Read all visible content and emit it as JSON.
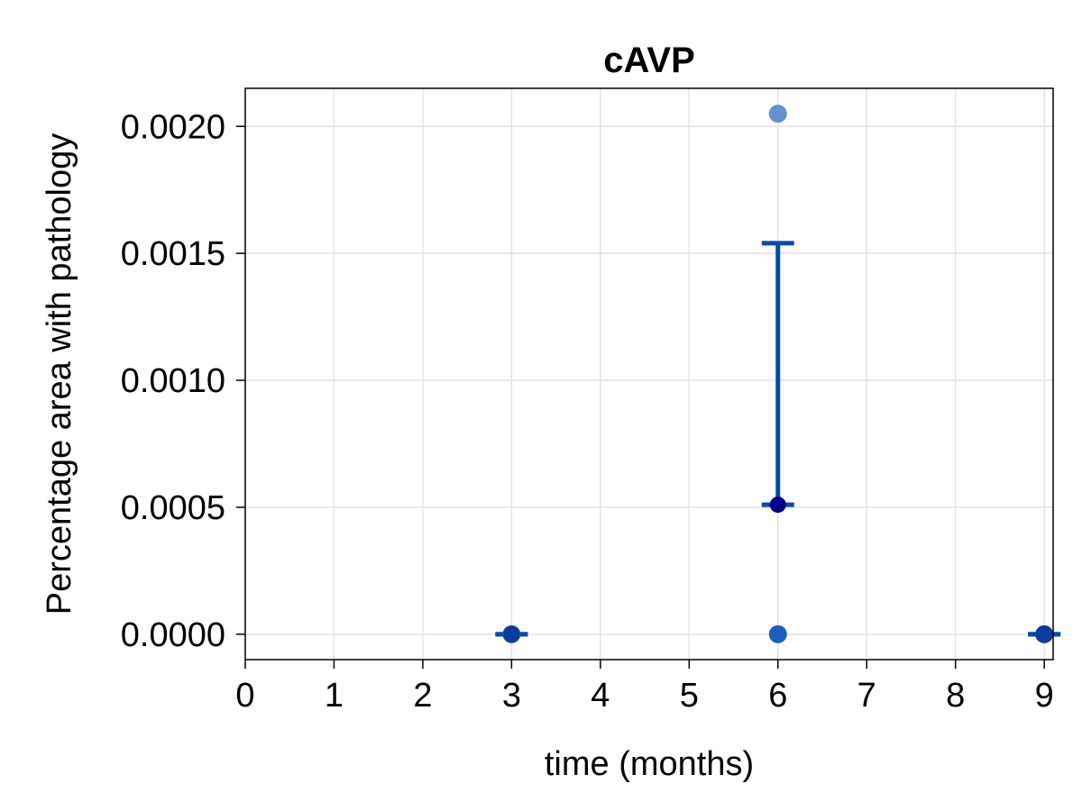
{
  "chart_data": {
    "type": "scatter",
    "title": "cAVP",
    "xlabel": "time (months)",
    "ylabel": "Percentage area with pathology",
    "xlim": [
      0,
      9.1
    ],
    "ylim": [
      -0.0001,
      0.00215
    ],
    "xticks": [
      0,
      1,
      2,
      3,
      4,
      5,
      6,
      7,
      8,
      9
    ],
    "xtick_labels": [
      "0",
      "1",
      "2",
      "3",
      "4",
      "5",
      "6",
      "7",
      "8",
      "9"
    ],
    "yticks": [
      0,
      0.0005,
      0.001,
      0.0015,
      0.002
    ],
    "ytick_labels": [
      "0.0000",
      "0.0005",
      "0.0010",
      "0.0015",
      "0.0020"
    ],
    "grid": true,
    "legend": "none",
    "points": [
      {
        "x": 3,
        "y": 0.0,
        "color": "#1a5fbf"
      },
      {
        "x": 6,
        "y": 0.00205,
        "color": "#6691d1"
      },
      {
        "x": 6,
        "y": 0.0,
        "color": "#1a5fbf"
      },
      {
        "x": 9,
        "y": 0.0,
        "color": "#0d3a9c"
      }
    ],
    "means": [
      {
        "x": 3,
        "y": 0.0,
        "color": "#0a3d9e"
      },
      {
        "x": 6,
        "y": 0.00051,
        "color": "#00008b"
      },
      {
        "x": 9,
        "y": 0.0,
        "color": "#0a3d9e"
      }
    ],
    "error_bars": [
      {
        "x": 3,
        "low": 0.0,
        "high": 0.0,
        "color": "#0a4aa8"
      },
      {
        "x": 6,
        "low": 0.00051,
        "high": 0.00154,
        "color": "#0a4aa8"
      },
      {
        "x": 9,
        "low": 0.0,
        "high": 0.0,
        "color": "#0a4aa8"
      }
    ]
  }
}
